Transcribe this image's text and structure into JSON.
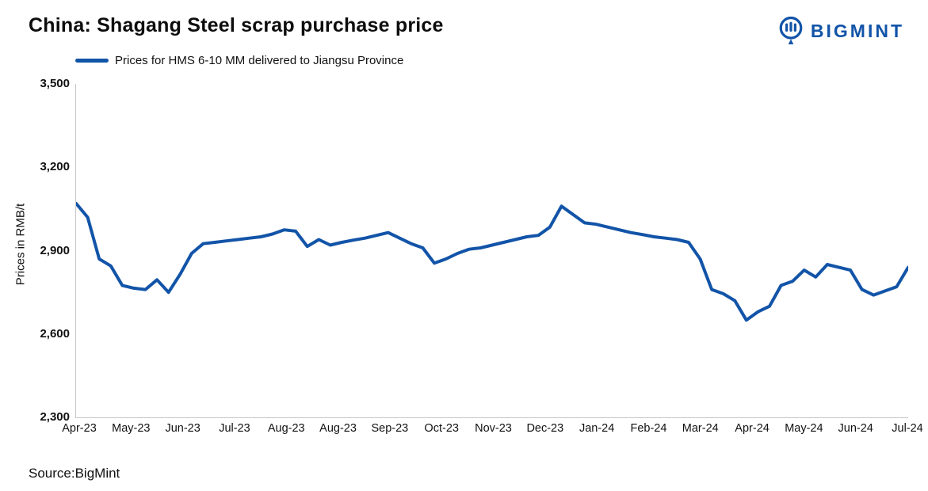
{
  "header": {
    "title": "China: Shagang Steel scrap purchase price",
    "brand": "BIGMINT"
  },
  "legend": {
    "label": "Prices for HMS 6-10 MM delivered to Jiangsu Province"
  },
  "source": "Source:BigMint",
  "colors": {
    "line": "#1254a8",
    "brand": "#1254a8",
    "axis": "#c7c7c7",
    "text": "#111111"
  },
  "chart_data": {
    "type": "line",
    "title": "China: Shagang Steel scrap purchase price",
    "xlabel": "",
    "ylabel": "Prices in RMB/t",
    "ylim": [
      2300,
      3500
    ],
    "yticks": [
      2300,
      2600,
      2900,
      3200,
      3500
    ],
    "x_tick_labels": [
      "Apr-23",
      "May-23",
      "Jun-23",
      "Jul-23",
      "Aug-23",
      "Aug-23",
      "Sep-23",
      "Oct-23",
      "Nov-23",
      "Dec-23",
      "Jan-24",
      "Feb-24",
      "Mar-24",
      "Apr-24",
      "May-24",
      "Jun-24",
      "Jul-24"
    ],
    "grid": false,
    "legend_position": "top-left",
    "series": [
      {
        "name": "Prices for HMS 6-10 MM delivered to Jiangsu Province",
        "values": [
          3070,
          3020,
          2870,
          2845,
          2775,
          2765,
          2760,
          2795,
          2750,
          2815,
          2890,
          2925,
          2930,
          2935,
          2940,
          2945,
          2950,
          2960,
          2975,
          2970,
          2915,
          2940,
          2920,
          2930,
          2938,
          2945,
          2955,
          2965,
          2945,
          2925,
          2910,
          2855,
          2870,
          2890,
          2905,
          2910,
          2920,
          2930,
          2940,
          2950,
          2955,
          2985,
          3060,
          3030,
          3000,
          2995,
          2985,
          2975,
          2965,
          2958,
          2950,
          2945,
          2940,
          2930,
          2870,
          2760,
          2745,
          2720,
          2650,
          2680,
          2700,
          2775,
          2790,
          2830,
          2805,
          2850,
          2840,
          2830,
          2760,
          2740,
          2755,
          2770,
          2840
        ]
      }
    ]
  }
}
